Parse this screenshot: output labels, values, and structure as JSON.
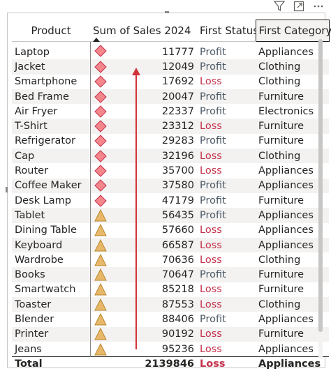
{
  "toolbar": {
    "filter_icon": "filter-icon",
    "focus_icon": "focus-mode-icon",
    "more_icon": "more-options-icon"
  },
  "table": {
    "headers": {
      "product": "Product",
      "sales": "Sum of Sales 2024",
      "status": "First Status",
      "category": "First Category"
    },
    "rows": [
      {
        "product": "Laptop",
        "sales": "11777",
        "icon": "diamond",
        "status": "Profit",
        "category": "Appliances"
      },
      {
        "product": "Jacket",
        "sales": "12049",
        "icon": "diamond",
        "status": "Profit",
        "category": "Clothing"
      },
      {
        "product": "Smartphone",
        "sales": "17692",
        "icon": "diamond",
        "status": "Loss",
        "category": "Clothing"
      },
      {
        "product": "Bed Frame",
        "sales": "20047",
        "icon": "diamond",
        "status": "Profit",
        "category": "Furniture"
      },
      {
        "product": "Air Fryer",
        "sales": "22337",
        "icon": "diamond",
        "status": "Profit",
        "category": "Electronics"
      },
      {
        "product": "T-Shirt",
        "sales": "23312",
        "icon": "diamond",
        "status": "Loss",
        "category": "Furniture"
      },
      {
        "product": "Refrigerator",
        "sales": "29283",
        "icon": "diamond",
        "status": "Profit",
        "category": "Furniture"
      },
      {
        "product": "Cap",
        "sales": "32196",
        "icon": "diamond",
        "status": "Loss",
        "category": "Clothing"
      },
      {
        "product": "Router",
        "sales": "35700",
        "icon": "diamond",
        "status": "Loss",
        "category": "Appliances"
      },
      {
        "product": "Coffee Maker",
        "sales": "37580",
        "icon": "diamond",
        "status": "Profit",
        "category": "Appliances"
      },
      {
        "product": "Desk Lamp",
        "sales": "47179",
        "icon": "diamond",
        "status": "Profit",
        "category": "Furniture"
      },
      {
        "product": "Tablet",
        "sales": "56435",
        "icon": "triangle",
        "status": "Profit",
        "category": "Appliances"
      },
      {
        "product": "Dining Table",
        "sales": "57660",
        "icon": "triangle",
        "status": "Loss",
        "category": "Appliances"
      },
      {
        "product": "Keyboard",
        "sales": "66587",
        "icon": "triangle",
        "status": "Loss",
        "category": "Appliances"
      },
      {
        "product": "Wardrobe",
        "sales": "70636",
        "icon": "triangle",
        "status": "Loss",
        "category": "Clothing"
      },
      {
        "product": "Books",
        "sales": "70647",
        "icon": "triangle",
        "status": "Profit",
        "category": "Furniture"
      },
      {
        "product": "Smartwatch",
        "sales": "85218",
        "icon": "triangle",
        "status": "Loss",
        "category": "Furniture"
      },
      {
        "product": "Toaster",
        "sales": "87553",
        "icon": "triangle",
        "status": "Loss",
        "category": "Clothing"
      },
      {
        "product": "Blender",
        "sales": "88406",
        "icon": "triangle",
        "status": "Profit",
        "category": "Appliances"
      },
      {
        "product": "Printer",
        "sales": "90192",
        "icon": "triangle",
        "status": "Loss",
        "category": "Furniture"
      },
      {
        "product": "Jeans",
        "sales": "95236",
        "icon": "triangle",
        "status": "Loss",
        "category": "Appliances"
      }
    ],
    "total": {
      "label": "Total",
      "sales": "2139846",
      "status": "Loss",
      "category": "Appliances"
    }
  },
  "colors": {
    "diamond_fill": "#f4868c",
    "diamond_stroke": "#c4314b",
    "triangle_fill": "#e8b86a",
    "triangle_stroke": "#b8862d",
    "arrow": "#d13438",
    "loss": "#c4314b",
    "profit": "#4d5a66"
  }
}
